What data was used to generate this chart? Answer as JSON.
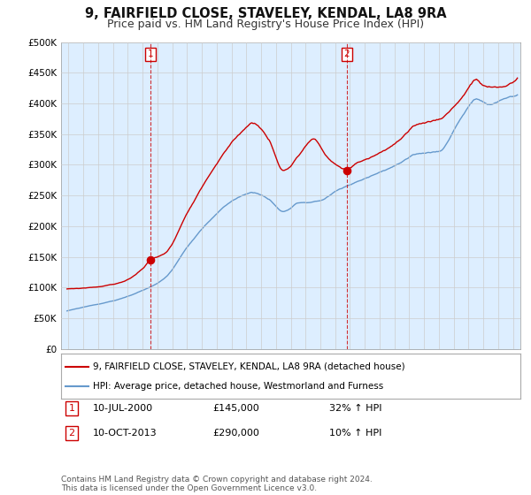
{
  "title": "9, FAIRFIELD CLOSE, STAVELEY, KENDAL, LA8 9RA",
  "subtitle": "Price paid vs. HM Land Registry's House Price Index (HPI)",
  "title_fontsize": 10.5,
  "subtitle_fontsize": 9,
  "ylim": [
    0,
    500000
  ],
  "yticks": [
    0,
    50000,
    100000,
    150000,
    200000,
    250000,
    300000,
    350000,
    400000,
    450000,
    500000
  ],
  "ytick_labels": [
    "£0",
    "£50K",
    "£100K",
    "£150K",
    "£200K",
    "£250K",
    "£300K",
    "£350K",
    "£400K",
    "£450K",
    "£500K"
  ],
  "xlim_start": 1994.5,
  "xlim_end": 2025.5,
  "property_color": "#cc0000",
  "hpi_color": "#6699cc",
  "hpi_fill_color": "#ddeeff",
  "sale1_year": 2000,
  "sale1_month": 7,
  "sale1_price": 145000,
  "sale2_year": 2013,
  "sale2_month": 10,
  "sale2_price": 290000,
  "legend_property": "9, FAIRFIELD CLOSE, STAVELEY, KENDAL, LA8 9RA (detached house)",
  "legend_hpi": "HPI: Average price, detached house, Westmorland and Furness",
  "annotation1_label": "1",
  "annotation1_date_str": "10-JUL-2000",
  "annotation1_price_str": "£145,000",
  "annotation1_hpi_str": "32% ↑ HPI",
  "annotation2_label": "2",
  "annotation2_date_str": "10-OCT-2013",
  "annotation2_price_str": "£290,000",
  "annotation2_hpi_str": "10% ↑ HPI",
  "footer": "Contains HM Land Registry data © Crown copyright and database right 2024.\nThis data is licensed under the Open Government Licence v3.0.",
  "background_color": "#ffffff",
  "grid_color": "#cccccc"
}
